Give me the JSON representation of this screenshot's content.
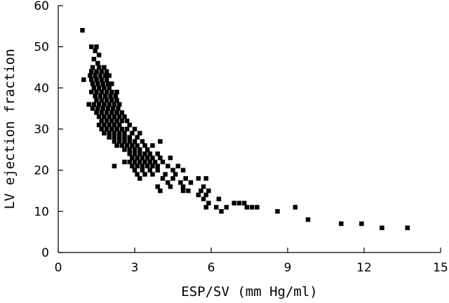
{
  "chart_data": {
    "type": "scatter",
    "title": "",
    "xlabel": "ESP/SV (mm Hg/ml)",
    "ylabel": "LV ejection fraction",
    "xlim": [
      0,
      15
    ],
    "ylim": [
      0,
      60
    ],
    "xticks": [
      0,
      3,
      6,
      9,
      12,
      15
    ],
    "yticks": [
      0,
      10,
      20,
      30,
      40,
      50,
      60
    ],
    "grid": false,
    "legend": "none",
    "marker": "square",
    "color": "#000000",
    "series": [
      {
        "points": [
          [
            0.95,
            54
          ],
          [
            1.0,
            42
          ],
          [
            1.3,
            50
          ],
          [
            1.5,
            50
          ],
          [
            1.45,
            49
          ],
          [
            1.6,
            48
          ],
          [
            1.4,
            47
          ],
          [
            1.55,
            46
          ],
          [
            1.35,
            45
          ],
          [
            1.6,
            45
          ],
          [
            1.8,
            45
          ],
          [
            1.3,
            44
          ],
          [
            1.5,
            44
          ],
          [
            1.7,
            44
          ],
          [
            1.9,
            44
          ],
          [
            1.25,
            43
          ],
          [
            1.45,
            43
          ],
          [
            1.65,
            43
          ],
          [
            1.85,
            43
          ],
          [
            2.0,
            43
          ],
          [
            1.3,
            42
          ],
          [
            1.5,
            42
          ],
          [
            1.7,
            42
          ],
          [
            1.9,
            42
          ],
          [
            1.35,
            41
          ],
          [
            1.55,
            41
          ],
          [
            1.75,
            41
          ],
          [
            1.95,
            41
          ],
          [
            2.1,
            41
          ],
          [
            1.4,
            40
          ],
          [
            1.6,
            40
          ],
          [
            1.8,
            40
          ],
          [
            2.0,
            40
          ],
          [
            1.3,
            39
          ],
          [
            1.5,
            39
          ],
          [
            1.7,
            39
          ],
          [
            1.9,
            39
          ],
          [
            2.1,
            39
          ],
          [
            2.3,
            39
          ],
          [
            1.45,
            38
          ],
          [
            1.65,
            38
          ],
          [
            1.85,
            38
          ],
          [
            2.05,
            38
          ],
          [
            2.25,
            38
          ],
          [
            1.5,
            37
          ],
          [
            1.7,
            37
          ],
          [
            1.9,
            37
          ],
          [
            2.1,
            37
          ],
          [
            2.3,
            37
          ],
          [
            1.2,
            36
          ],
          [
            1.4,
            36
          ],
          [
            1.6,
            36
          ],
          [
            1.8,
            36
          ],
          [
            2.0,
            36
          ],
          [
            2.2,
            36
          ],
          [
            2.4,
            36
          ],
          [
            1.35,
            35
          ],
          [
            1.55,
            35
          ],
          [
            1.75,
            35
          ],
          [
            1.95,
            35
          ],
          [
            2.15,
            35
          ],
          [
            2.35,
            35
          ],
          [
            1.5,
            34
          ],
          [
            1.7,
            34
          ],
          [
            1.9,
            34
          ],
          [
            2.1,
            34
          ],
          [
            2.3,
            34
          ],
          [
            2.5,
            34
          ],
          [
            1.6,
            33
          ],
          [
            1.8,
            33
          ],
          [
            2.0,
            33
          ],
          [
            2.2,
            33
          ],
          [
            2.4,
            33
          ],
          [
            2.6,
            33
          ],
          [
            1.7,
            32
          ],
          [
            1.9,
            32
          ],
          [
            2.1,
            32
          ],
          [
            2.3,
            32
          ],
          [
            2.5,
            32
          ],
          [
            2.7,
            32
          ],
          [
            1.6,
            31
          ],
          [
            1.8,
            31
          ],
          [
            2.0,
            31
          ],
          [
            2.2,
            31
          ],
          [
            2.4,
            31
          ],
          [
            2.8,
            31
          ],
          [
            1.7,
            30
          ],
          [
            1.9,
            30
          ],
          [
            2.1,
            30
          ],
          [
            2.3,
            30
          ],
          [
            2.5,
            30
          ],
          [
            2.7,
            30
          ],
          [
            3.0,
            30
          ],
          [
            1.8,
            29
          ],
          [
            2.0,
            29
          ],
          [
            2.2,
            29
          ],
          [
            2.4,
            29
          ],
          [
            2.6,
            29
          ],
          [
            2.9,
            29
          ],
          [
            3.2,
            29
          ],
          [
            2.0,
            28
          ],
          [
            2.2,
            28
          ],
          [
            2.4,
            28
          ],
          [
            2.6,
            28
          ],
          [
            2.8,
            28
          ],
          [
            3.1,
            28
          ],
          [
            2.2,
            27
          ],
          [
            2.4,
            27
          ],
          [
            2.6,
            27
          ],
          [
            2.8,
            27
          ],
          [
            3.0,
            27
          ],
          [
            3.3,
            27
          ],
          [
            4.0,
            27
          ],
          [
            2.3,
            26
          ],
          [
            2.5,
            26
          ],
          [
            2.7,
            26
          ],
          [
            2.9,
            26
          ],
          [
            3.1,
            26
          ],
          [
            3.4,
            26
          ],
          [
            3.7,
            26
          ],
          [
            2.6,
            25
          ],
          [
            2.8,
            25
          ],
          [
            3.0,
            25
          ],
          [
            3.2,
            25
          ],
          [
            3.5,
            25
          ],
          [
            2.8,
            24
          ],
          [
            3.0,
            24
          ],
          [
            3.2,
            24
          ],
          [
            3.4,
            24
          ],
          [
            3.6,
            24
          ],
          [
            3.9,
            24
          ],
          [
            2.9,
            23
          ],
          [
            3.1,
            23
          ],
          [
            3.3,
            23
          ],
          [
            3.5,
            23
          ],
          [
            3.7,
            23
          ],
          [
            4.0,
            23
          ],
          [
            4.4,
            23
          ],
          [
            2.6,
            22
          ],
          [
            2.8,
            22
          ],
          [
            3.0,
            22
          ],
          [
            3.2,
            22
          ],
          [
            3.4,
            22
          ],
          [
            3.6,
            22
          ],
          [
            3.8,
            22
          ],
          [
            4.1,
            22
          ],
          [
            2.2,
            21
          ],
          [
            2.9,
            21
          ],
          [
            3.1,
            21
          ],
          [
            3.3,
            21
          ],
          [
            3.5,
            21
          ],
          [
            3.7,
            21
          ],
          [
            3.9,
            21
          ],
          [
            4.3,
            21
          ],
          [
            4.7,
            21
          ],
          [
            3.0,
            20
          ],
          [
            3.3,
            20
          ],
          [
            3.6,
            20
          ],
          [
            3.9,
            20
          ],
          [
            4.5,
            20
          ],
          [
            4.9,
            20
          ],
          [
            3.1,
            19
          ],
          [
            3.4,
            19
          ],
          [
            3.7,
            19
          ],
          [
            4.2,
            19
          ],
          [
            4.6,
            19
          ],
          [
            3.2,
            18
          ],
          [
            4.1,
            18
          ],
          [
            4.5,
            18
          ],
          [
            5.0,
            18
          ],
          [
            5.5,
            18
          ],
          [
            5.8,
            18
          ],
          [
            4.3,
            17
          ],
          [
            4.8,
            17
          ],
          [
            5.2,
            17
          ],
          [
            3.9,
            16
          ],
          [
            4.4,
            16
          ],
          [
            4.9,
            16
          ],
          [
            5.7,
            16
          ],
          [
            4.0,
            15
          ],
          [
            4.9,
            15
          ],
          [
            5.1,
            15
          ],
          [
            5.6,
            15
          ],
          [
            5.9,
            15
          ],
          [
            5.5,
            14
          ],
          [
            5.8,
            14
          ],
          [
            5.7,
            13
          ],
          [
            6.3,
            13
          ],
          [
            5.9,
            12
          ],
          [
            6.9,
            12
          ],
          [
            7.1,
            12
          ],
          [
            7.3,
            12
          ],
          [
            5.8,
            11
          ],
          [
            6.2,
            11
          ],
          [
            6.6,
            11
          ],
          [
            7.4,
            11
          ],
          [
            7.6,
            11
          ],
          [
            7.8,
            11
          ],
          [
            6.4,
            10
          ],
          [
            8.6,
            10
          ],
          [
            9.3,
            11
          ],
          [
            9.8,
            8
          ],
          [
            11.1,
            7
          ],
          [
            11.9,
            7
          ],
          [
            12.7,
            6
          ],
          [
            13.7,
            6
          ]
        ]
      }
    ]
  }
}
